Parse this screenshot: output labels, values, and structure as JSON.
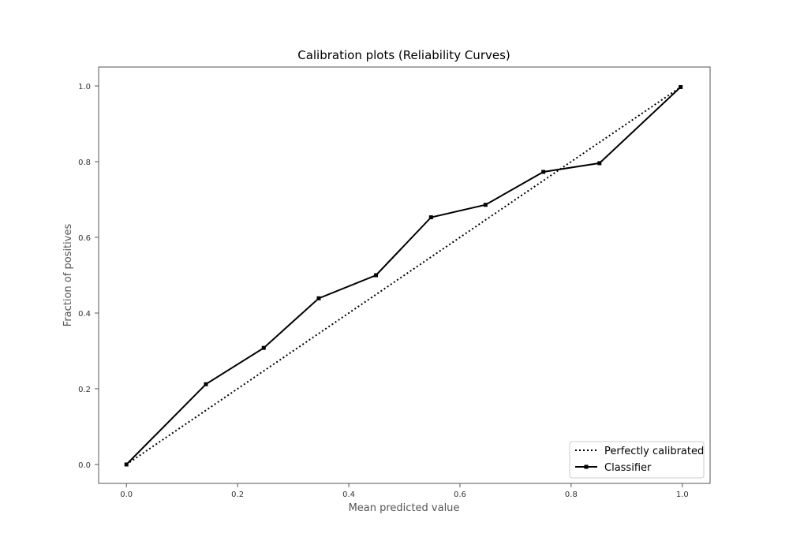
{
  "chart_data": {
    "type": "line",
    "title": "Calibration plots (Reliability Curves)",
    "xlabel": "Mean predicted value",
    "ylabel": "Fraction of positives",
    "xlim": [
      -0.05,
      1.05
    ],
    "ylim": [
      -0.05,
      1.05
    ],
    "xticks": [
      "0.0",
      "0.2",
      "0.4",
      "0.6",
      "0.8",
      "1.0"
    ],
    "yticks": [
      "0.0",
      "0.2",
      "0.4",
      "0.6",
      "0.8",
      "1.0"
    ],
    "grid": false,
    "legend_position": "bottom-right",
    "series": [
      {
        "name": "Perfectly calibrated",
        "style": "dotted",
        "color": "#000000",
        "marker": "none",
        "x": [
          0,
          1
        ],
        "y": [
          0,
          1
        ]
      },
      {
        "name": "Classifier",
        "style": "solid",
        "color": "#000000",
        "marker": "square",
        "x": [
          0.0,
          0.143,
          0.247,
          0.346,
          0.449,
          0.548,
          0.646,
          0.75,
          0.851,
          0.997
        ],
        "y": [
          0.0,
          0.212,
          0.308,
          0.439,
          0.5,
          0.653,
          0.686,
          0.773,
          0.796,
          0.997
        ]
      }
    ]
  }
}
